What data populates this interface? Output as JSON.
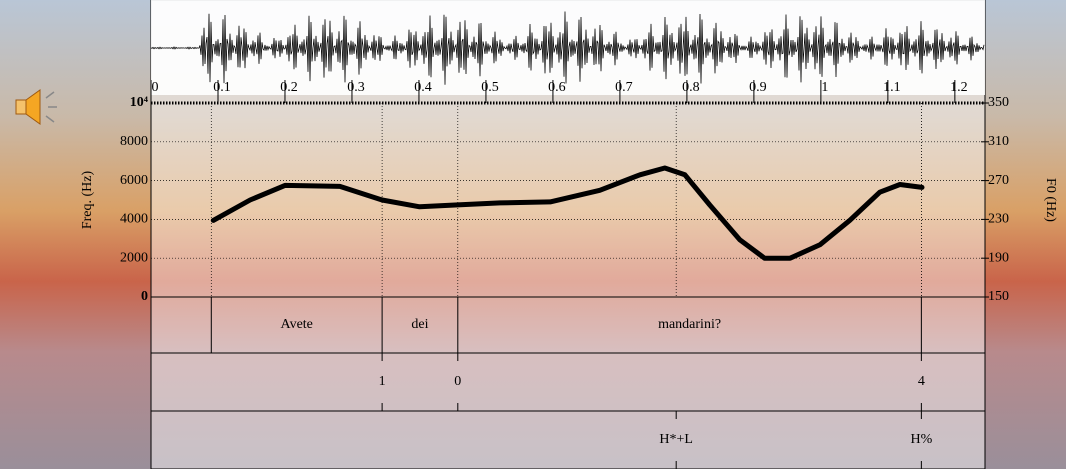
{
  "chart_data": {
    "type": "line",
    "xlim": [
      0,
      1.245
    ],
    "xticks": [
      0,
      0.1,
      0.2,
      0.3,
      0.4,
      0.5,
      0.6,
      0.7,
      0.8,
      0.9,
      1,
      1.1,
      1.2
    ],
    "ylim": [
      150,
      350
    ],
    "yticks": [
      150,
      190,
      230,
      270,
      310,
      350
    ],
    "ylabel": "F0 (Hz)",
    "y2lim": [
      0,
      10000
    ],
    "y2ticks": [
      0,
      2000,
      4000,
      6000,
      8000,
      {
        "value": 10000,
        "label": "10⁴"
      }
    ],
    "y2label": "Freq. (Hz)",
    "color": "#000000",
    "x": [
      0.093,
      0.148,
      0.2,
      0.282,
      0.345,
      0.401,
      0.458,
      0.521,
      0.596,
      0.67,
      0.73,
      0.767,
      0.797,
      0.834,
      0.879,
      0.916,
      0.954,
      0.999,
      1.043,
      1.088,
      1.118,
      1.151
    ],
    "values": [
      229,
      250,
      265,
      264,
      250,
      243,
      245,
      247,
      248,
      260,
      276,
      283,
      276,
      245,
      209,
      190,
      190,
      204,
      229,
      258,
      266,
      263
    ],
    "words": {
      "boundaries": [
        0.09,
        0.345,
        0.458,
        1.15
      ],
      "labels": [
        "Avete",
        "dei",
        "mandarini?"
      ]
    },
    "breaks": [
      {
        "time": 0.345,
        "label": "1"
      },
      {
        "time": 0.458,
        "label": "0"
      },
      {
        "time": 1.15,
        "label": "4"
      }
    ],
    "tones": [
      {
        "time": 0.784,
        "label": "H*+L"
      },
      {
        "time": 1.15,
        "label": "H%"
      }
    ]
  }
}
